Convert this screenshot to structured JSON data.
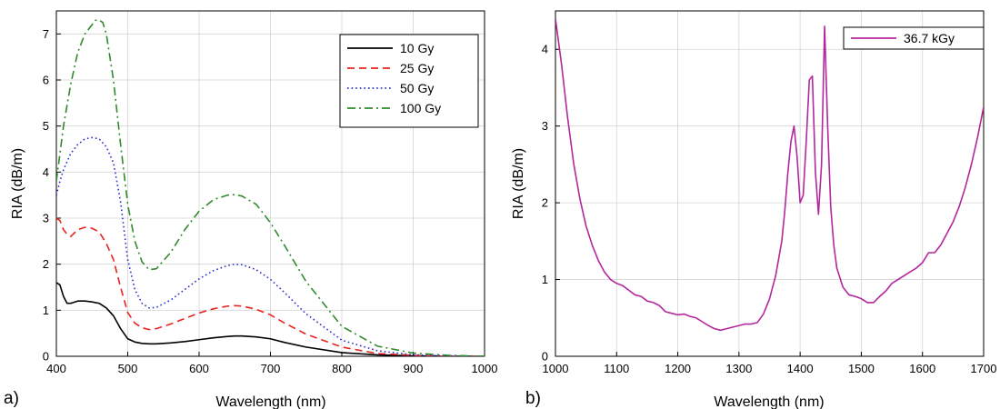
{
  "chart_data": [
    {
      "type": "line",
      "panel_label": "a)",
      "xlabel": "Wavelength (nm)",
      "ylabel": "RIA (dB/m)",
      "xlim": [
        400,
        1000
      ],
      "ylim": [
        0,
        7.5
      ],
      "xticks": [
        400,
        500,
        600,
        700,
        800,
        900,
        1000
      ],
      "yticks": [
        0,
        1,
        2,
        3,
        4,
        5,
        6,
        7
      ],
      "grid": true,
      "legend_position": "top-right",
      "series": [
        {
          "name": "10 Gy",
          "color": "#000000",
          "dash": "solid",
          "x": [
            400,
            405,
            410,
            415,
            420,
            430,
            440,
            450,
            460,
            470,
            480,
            490,
            500,
            510,
            520,
            530,
            540,
            560,
            580,
            600,
            620,
            640,
            650,
            660,
            680,
            700,
            720,
            750,
            800,
            850,
            900,
            950,
            1000
          ],
          "y": [
            1.6,
            1.55,
            1.3,
            1.15,
            1.15,
            1.2,
            1.2,
            1.18,
            1.15,
            1.05,
            0.88,
            0.6,
            0.38,
            0.31,
            0.28,
            0.27,
            0.27,
            0.29,
            0.32,
            0.36,
            0.4,
            0.43,
            0.44,
            0.44,
            0.42,
            0.38,
            0.3,
            0.2,
            0.08,
            0.03,
            0.01,
            0.0,
            0.0
          ]
        },
        {
          "name": "25 Gy",
          "color": "#e8231f",
          "dash": "dashed",
          "x": [
            400,
            405,
            410,
            415,
            420,
            430,
            440,
            450,
            460,
            470,
            480,
            490,
            500,
            510,
            520,
            530,
            540,
            560,
            580,
            600,
            620,
            640,
            650,
            660,
            680,
            700,
            720,
            750,
            800,
            850,
            900,
            950,
            1000
          ],
          "y": [
            3.0,
            2.95,
            2.75,
            2.65,
            2.6,
            2.75,
            2.8,
            2.78,
            2.7,
            2.45,
            2.1,
            1.5,
            0.95,
            0.72,
            0.62,
            0.58,
            0.6,
            0.7,
            0.82,
            0.94,
            1.03,
            1.09,
            1.1,
            1.09,
            1.02,
            0.9,
            0.72,
            0.48,
            0.2,
            0.06,
            0.02,
            0.0,
            0.0
          ]
        },
        {
          "name": "50 Gy",
          "color": "#2b2fc9",
          "dash": "dotted",
          "x": [
            400,
            405,
            410,
            420,
            430,
            440,
            450,
            460,
            470,
            480,
            490,
            500,
            510,
            520,
            530,
            540,
            560,
            580,
            600,
            620,
            640,
            650,
            660,
            680,
            700,
            720,
            750,
            800,
            850,
            900,
            950,
            1000
          ],
          "y": [
            3.5,
            3.8,
            4.05,
            4.4,
            4.6,
            4.72,
            4.75,
            4.72,
            4.55,
            4.2,
            3.35,
            2.1,
            1.45,
            1.15,
            1.05,
            1.06,
            1.22,
            1.45,
            1.68,
            1.86,
            1.97,
            2.0,
            1.99,
            1.88,
            1.67,
            1.38,
            0.92,
            0.35,
            0.12,
            0.03,
            0.01,
            0.0
          ]
        },
        {
          "name": "100 Gy",
          "color": "#2f8a2c",
          "dash": "dashdot",
          "x": [
            400,
            405,
            410,
            420,
            430,
            440,
            450,
            455,
            460,
            465,
            470,
            480,
            490,
            500,
            510,
            520,
            530,
            540,
            560,
            580,
            600,
            620,
            640,
            650,
            660,
            680,
            700,
            720,
            750,
            800,
            850,
            900,
            950,
            1000
          ],
          "y": [
            3.8,
            4.4,
            5.0,
            5.9,
            6.6,
            7.0,
            7.2,
            7.3,
            7.3,
            7.25,
            7.0,
            6.0,
            4.6,
            3.3,
            2.5,
            2.05,
            1.88,
            1.9,
            2.25,
            2.75,
            3.15,
            3.4,
            3.5,
            3.51,
            3.48,
            3.3,
            2.9,
            2.4,
            1.62,
            0.65,
            0.22,
            0.07,
            0.02,
            0.0
          ]
        }
      ]
    },
    {
      "type": "line",
      "panel_label": "b)",
      "xlabel": "Wavelength (nm)",
      "ylabel": "RIA (dB/m)",
      "xlim": [
        1000,
        1700
      ],
      "ylim": [
        0,
        4.5
      ],
      "xticks": [
        1000,
        1100,
        1200,
        1300,
        1400,
        1500,
        1600,
        1700
      ],
      "yticks": [
        0,
        1,
        2,
        3,
        4
      ],
      "grid": true,
      "legend_position": "top-right",
      "series": [
        {
          "name": "36.7 kGy",
          "color": "#b3279d",
          "dash": "solid",
          "x": [
            1000,
            1005,
            1010,
            1020,
            1030,
            1040,
            1050,
            1060,
            1070,
            1080,
            1090,
            1100,
            1110,
            1120,
            1130,
            1140,
            1150,
            1160,
            1170,
            1180,
            1190,
            1200,
            1210,
            1220,
            1230,
            1240,
            1250,
            1260,
            1270,
            1280,
            1290,
            1300,
            1310,
            1320,
            1330,
            1340,
            1350,
            1360,
            1370,
            1375,
            1380,
            1385,
            1390,
            1395,
            1400,
            1405,
            1410,
            1415,
            1420,
            1425,
            1430,
            1435,
            1440,
            1445,
            1450,
            1455,
            1460,
            1470,
            1480,
            1490,
            1500,
            1510,
            1520,
            1530,
            1540,
            1550,
            1560,
            1570,
            1580,
            1590,
            1600,
            1610,
            1620,
            1630,
            1640,
            1650,
            1660,
            1670,
            1680,
            1690,
            1700
          ],
          "y": [
            4.4,
            4.1,
            3.8,
            3.1,
            2.5,
            2.05,
            1.7,
            1.45,
            1.25,
            1.1,
            1.0,
            0.95,
            0.92,
            0.86,
            0.8,
            0.78,
            0.72,
            0.7,
            0.66,
            0.58,
            0.56,
            0.54,
            0.55,
            0.52,
            0.5,
            0.45,
            0.4,
            0.36,
            0.34,
            0.36,
            0.38,
            0.4,
            0.42,
            0.42,
            0.44,
            0.55,
            0.75,
            1.05,
            1.5,
            1.9,
            2.4,
            2.8,
            3.0,
            2.6,
            2.0,
            2.1,
            2.8,
            3.6,
            3.65,
            2.4,
            1.85,
            2.5,
            4.3,
            3.0,
            1.95,
            1.45,
            1.15,
            0.9,
            0.8,
            0.78,
            0.75,
            0.7,
            0.7,
            0.78,
            0.85,
            0.95,
            1.0,
            1.05,
            1.1,
            1.15,
            1.22,
            1.35,
            1.35,
            1.45,
            1.6,
            1.75,
            1.95,
            2.2,
            2.5,
            2.85,
            3.25
          ]
        }
      ]
    }
  ]
}
